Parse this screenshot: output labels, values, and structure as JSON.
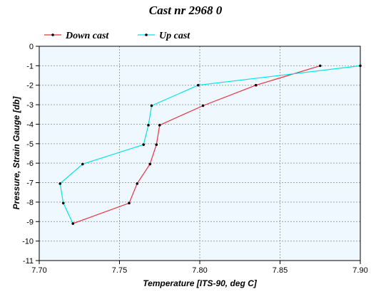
{
  "chart_data": {
    "type": "line",
    "title": "Cast nr 2968 0",
    "xlabel": "Temperature [ITS-90, deg C]",
    "ylabel": "Pressure, Strain Gauge [db]",
    "xlim": [
      7.7,
      7.9
    ],
    "ylim": [
      -11,
      0
    ],
    "x_ticks": [
      "7.70",
      "7.75",
      "7.80",
      "7.85",
      "7.90"
    ],
    "y_ticks": [
      "0",
      "-1",
      "-2",
      "-3",
      "-4",
      "-5",
      "-6",
      "-7",
      "-8",
      "-9",
      "-10",
      "-11"
    ],
    "grid": true,
    "legend_position": "top",
    "series": [
      {
        "name": "Down cast",
        "color": "#e8323c",
        "points": [
          [
            7.875,
            -1.0
          ],
          [
            7.835,
            -2.0
          ],
          [
            7.802,
            -3.05
          ],
          [
            7.775,
            -4.05
          ],
          [
            7.773,
            -5.05
          ],
          [
            7.769,
            -6.05
          ],
          [
            7.761,
            -7.05
          ],
          [
            7.756,
            -8.05
          ],
          [
            7.721,
            -9.1
          ]
        ]
      },
      {
        "name": "Up cast",
        "color": "#00e5e5",
        "points": [
          [
            7.9,
            -1.0
          ],
          [
            7.799,
            -2.0
          ],
          [
            7.77,
            -3.05
          ],
          [
            7.768,
            -4.05
          ],
          [
            7.765,
            -5.05
          ],
          [
            7.727,
            -6.05
          ],
          [
            7.713,
            -7.05
          ],
          [
            7.715,
            -8.05
          ],
          [
            7.721,
            -9.1
          ]
        ]
      }
    ]
  }
}
